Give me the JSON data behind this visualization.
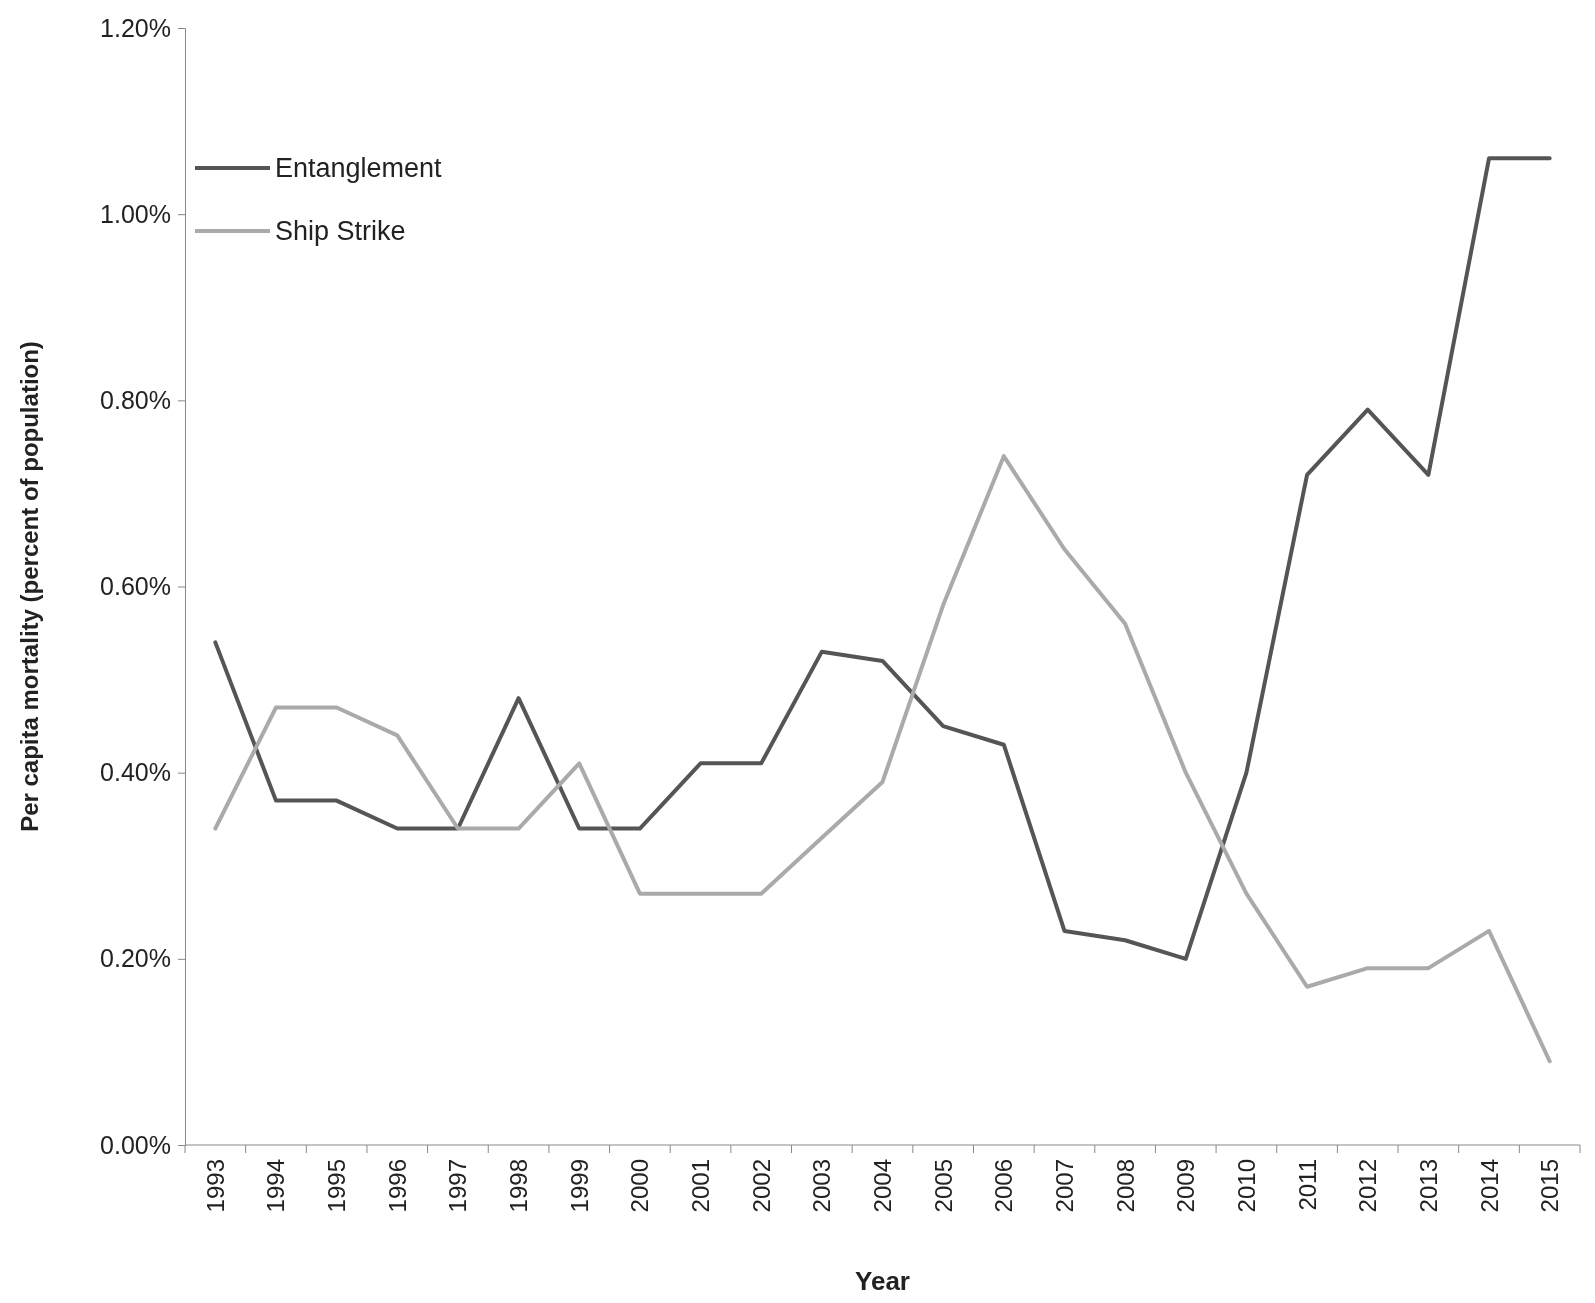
{
  "chart_data": {
    "type": "line",
    "xlabel": "Year",
    "ylabel": "Per capita mortality (percent of population)",
    "categories": [
      "1993",
      "1994",
      "1995",
      "1996",
      "1997",
      "1998",
      "1999",
      "2000",
      "2001",
      "2002",
      "2003",
      "2004",
      "2005",
      "2006",
      "2007",
      "2008",
      "2009",
      "2010",
      "2011",
      "2012",
      "2013",
      "2014",
      "2015"
    ],
    "series": [
      {
        "name": "Entanglement",
        "color": "#555555",
        "values": [
          0.54,
          0.37,
          0.37,
          0.34,
          0.34,
          0.48,
          0.34,
          0.34,
          0.41,
          0.41,
          0.53,
          0.52,
          0.45,
          0.43,
          0.23,
          0.22,
          0.2,
          0.4,
          0.72,
          0.79,
          0.72,
          1.06,
          1.06
        ]
      },
      {
        "name": "Ship Strike",
        "color": "#aaaaaa",
        "values": [
          0.34,
          0.47,
          0.47,
          0.44,
          0.34,
          0.34,
          0.41,
          0.27,
          0.27,
          0.27,
          0.33,
          0.39,
          0.58,
          0.74,
          0.64,
          0.56,
          0.4,
          0.27,
          0.17,
          0.19,
          0.19,
          0.23,
          0.09
        ]
      }
    ],
    "ylim": [
      0,
      1.2
    ],
    "yticks": [
      {
        "value": 0,
        "label": "0.00%"
      },
      {
        "value": 0.2,
        "label": "0.20%"
      },
      {
        "value": 0.4,
        "label": "0.40%"
      },
      {
        "value": 0.6,
        "label": "0.60%"
      },
      {
        "value": 0.8,
        "label": "0.80%"
      },
      {
        "value": 1.0,
        "label": "1.00%"
      },
      {
        "value": 1.2,
        "label": "1.20%"
      }
    ],
    "grid": false,
    "legend": "top left",
    "marker": "none",
    "line_style": "solid"
  }
}
